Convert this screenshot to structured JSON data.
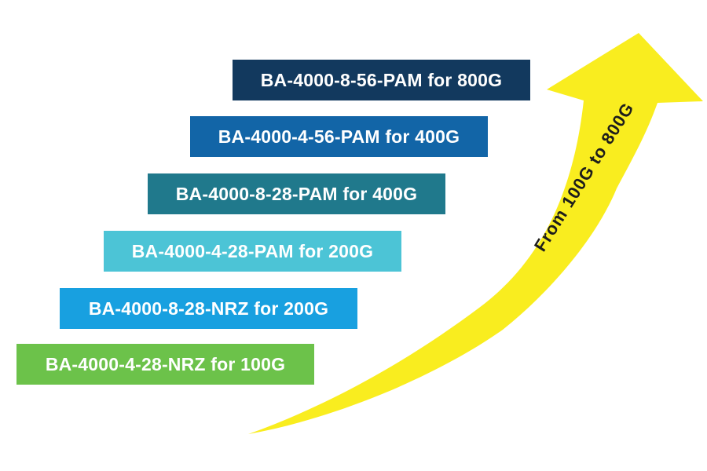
{
  "diagram": {
    "background": "#ffffff",
    "label_text_color": "#ffffff",
    "steps": [
      {
        "label": "BA-4000-8-56-PAM for 800G",
        "color": "#12395E"
      },
      {
        "label": "BA-4000-4-56-PAM for 400G",
        "color": "#1265A7"
      },
      {
        "label": "BA-4000-8-28-PAM for 400G",
        "color": "#20798C"
      },
      {
        "label": "BA-4000-4-28-PAM for 200G",
        "color": "#4CC4D6"
      },
      {
        "label": "BA-4000-8-28-NRZ for 200G",
        "color": "#18A0E0"
      },
      {
        "label": "BA-4000-4-28-NRZ for 100G",
        "color": "#6CC24A"
      }
    ],
    "arrow": {
      "label": "From 100G to 800G",
      "fill": "#F9ED1F",
      "label_color": "#1D1D1B"
    }
  }
}
